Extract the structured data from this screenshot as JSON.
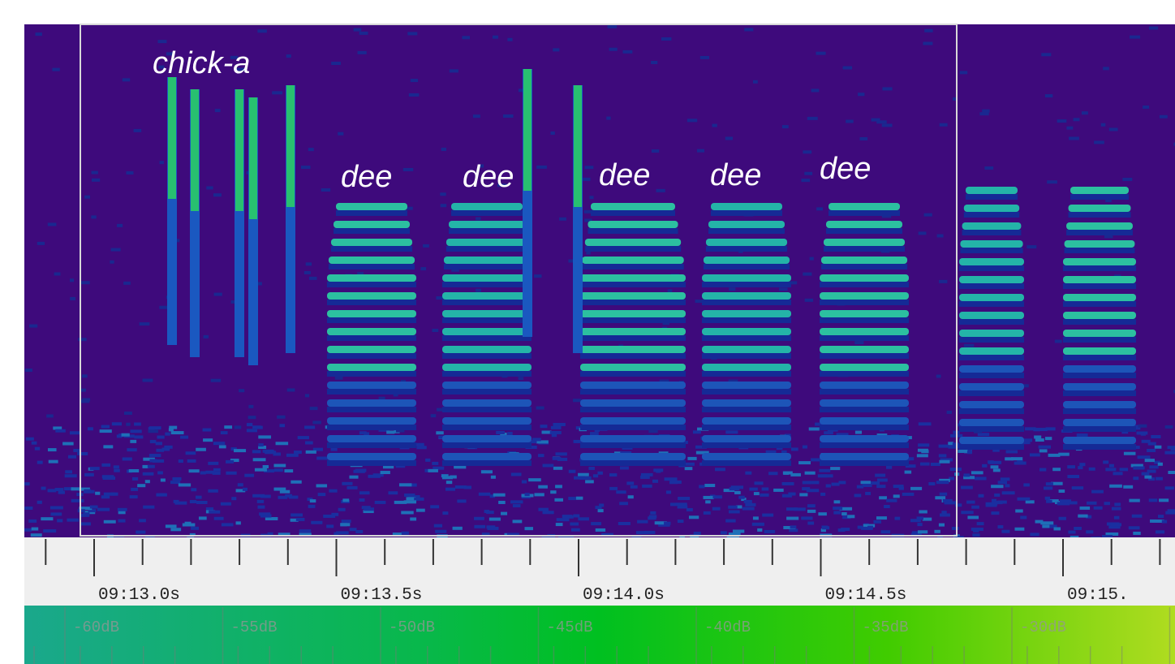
{
  "annotations": {
    "call": "chick-a",
    "notes": [
      "dee",
      "dee",
      "dee",
      "dee",
      "dee"
    ]
  },
  "time_axis": {
    "labels": [
      "09:13.0s",
      "09:13.5s",
      "09:14.0s",
      "09:14.5s",
      "09:15."
    ]
  },
  "level_scale": {
    "labels": [
      "-60dB",
      "-55dB",
      "-50dB",
      "-45dB",
      "-40dB",
      "-35dB",
      "-30dB"
    ]
  }
}
